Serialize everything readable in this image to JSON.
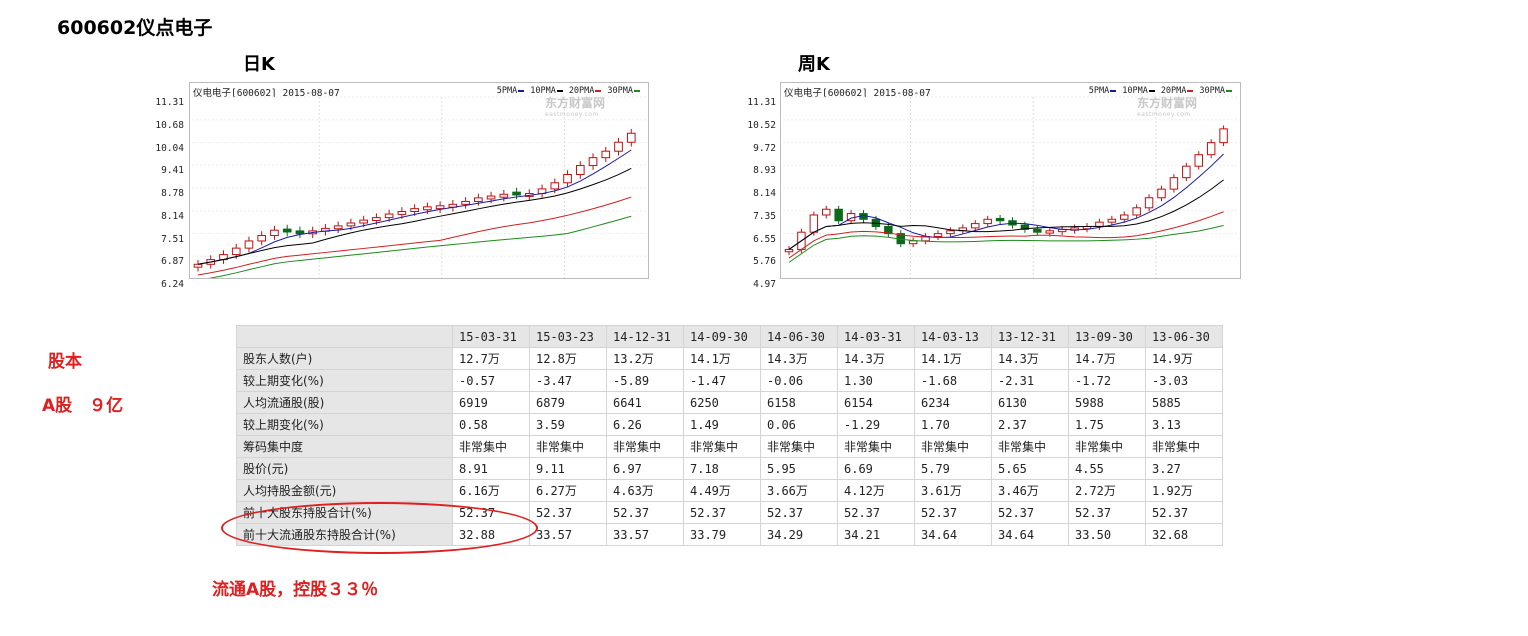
{
  "page_title": "600602仪点电子",
  "daily_k": {
    "label": "日K",
    "header": "仪电电子[600602] 2015-08-07",
    "legend": [
      {
        "name": "5PMA",
        "color": "#1a1aa8"
      },
      {
        "name": "10PMA",
        "color": "#000000"
      },
      {
        "name": "20PMA",
        "color": "#d02020"
      },
      {
        "name": "30PMA",
        "color": "#1f8a1f"
      }
    ],
    "watermark": "东方财富网",
    "watermark_sub": "eastmoney.com"
  },
  "weekly_k": {
    "label": "周K",
    "header": "仪电电子[600602] 2015-08-07",
    "legend": [
      {
        "name": "5PMA",
        "color": "#1a1aa8"
      },
      {
        "name": "10PMA",
        "color": "#000000"
      },
      {
        "name": "20PMA",
        "color": "#d02020"
      },
      {
        "name": "30PMA",
        "color": "#1f8a1f"
      }
    ],
    "watermark": "东方财富网",
    "watermark_sub": "eastmoney.com"
  },
  "chart_data": [
    {
      "type": "candlestick",
      "title": "日K",
      "subtitle": "仪电电子[600602] 2015-08-07",
      "ylim": [
        6.24,
        11.31
      ],
      "yticks": [
        "11.31",
        "10.68",
        "10.04",
        "9.41",
        "8.78",
        "8.14",
        "7.51",
        "6.87",
        "6.24"
      ],
      "legend": [
        "5PMA",
        "10PMA",
        "20PMA",
        "30PMA"
      ],
      "grid": true,
      "close_trend": [
        6.65,
        6.78,
        6.92,
        7.1,
        7.3,
        7.45,
        7.6,
        7.55,
        7.5,
        7.58,
        7.65,
        7.72,
        7.8,
        7.88,
        7.95,
        8.05,
        8.12,
        8.2,
        8.25,
        8.28,
        8.32,
        8.4,
        8.5,
        8.55,
        8.6,
        8.58,
        8.62,
        8.75,
        8.92,
        9.15,
        9.4,
        9.62,
        9.8,
        10.05,
        10.3
      ]
    },
    {
      "type": "candlestick",
      "title": "周K",
      "subtitle": "仪电电子[600602] 2015-08-07",
      "ylim": [
        4.97,
        11.31
      ],
      "yticks": [
        "11.31",
        "10.52",
        "9.72",
        "8.93",
        "8.14",
        "7.35",
        "6.55",
        "5.76",
        "4.97"
      ],
      "legend": [
        "5PMA",
        "10PMA",
        "20PMA",
        "30PMA"
      ],
      "grid": true,
      "close_trend": [
        6.0,
        6.6,
        7.2,
        7.4,
        7.0,
        7.25,
        7.05,
        6.8,
        6.55,
        6.2,
        6.3,
        6.45,
        6.55,
        6.65,
        6.75,
        6.9,
        7.05,
        7.0,
        6.85,
        6.7,
        6.6,
        6.65,
        6.7,
        6.75,
        6.8,
        6.95,
        7.05,
        7.2,
        7.45,
        7.8,
        8.1,
        8.5,
        8.9,
        9.3,
        9.72,
        10.2
      ]
    }
  ],
  "notes": {
    "guben": "股本",
    "a_share": "A股　９亿",
    "float_note": "流通A股，控股３３％"
  },
  "holder_table": {
    "dates": [
      "15-03-31",
      "15-03-23",
      "14-12-31",
      "14-09-30",
      "14-06-30",
      "14-03-31",
      "14-03-13",
      "13-12-31",
      "13-09-30",
      "13-06-30"
    ],
    "rows": [
      {
        "label": "股东人数(户)",
        "values": [
          "12.7万",
          "12.8万",
          "13.2万",
          "14.1万",
          "14.3万",
          "14.3万",
          "14.1万",
          "14.3万",
          "14.7万",
          "14.9万"
        ]
      },
      {
        "label": "较上期变化(%)",
        "values": [
          "-0.57",
          "-3.47",
          "-5.89",
          "-1.47",
          "-0.06",
          "1.30",
          "-1.68",
          "-2.31",
          "-1.72",
          "-3.03"
        ]
      },
      {
        "label": "人均流通股(股)",
        "values": [
          "6919",
          "6879",
          "6641",
          "6250",
          "6158",
          "6154",
          "6234",
          "6130",
          "5988",
          "5885"
        ]
      },
      {
        "label": "较上期变化(%)",
        "values": [
          "0.58",
          "3.59",
          "6.26",
          "1.49",
          "0.06",
          "-1.29",
          "1.70",
          "2.37",
          "1.75",
          "3.13"
        ]
      },
      {
        "label": "筹码集中度",
        "values": [
          "非常集中",
          "非常集中",
          "非常集中",
          "非常集中",
          "非常集中",
          "非常集中",
          "非常集中",
          "非常集中",
          "非常集中",
          "非常集中"
        ]
      },
      {
        "label": "股价(元)",
        "values": [
          "8.91",
          "9.11",
          "6.97",
          "7.18",
          "5.95",
          "6.69",
          "5.79",
          "5.65",
          "4.55",
          "3.27"
        ]
      },
      {
        "label": "人均持股金额(元)",
        "values": [
          "6.16万",
          "6.27万",
          "4.63万",
          "4.49万",
          "3.66万",
          "4.12万",
          "3.61万",
          "3.46万",
          "2.72万",
          "1.92万"
        ]
      },
      {
        "label": "前十大股东持股合计(%)",
        "values": [
          "52.37",
          "52.37",
          "52.37",
          "52.37",
          "52.37",
          "52.37",
          "52.37",
          "52.37",
          "52.37",
          "52.37"
        ]
      },
      {
        "label": "前十大流通股东持股合计(%)",
        "values": [
          "32.88",
          "33.57",
          "33.57",
          "33.79",
          "34.29",
          "34.21",
          "34.64",
          "34.64",
          "33.50",
          "32.68"
        ]
      }
    ]
  }
}
